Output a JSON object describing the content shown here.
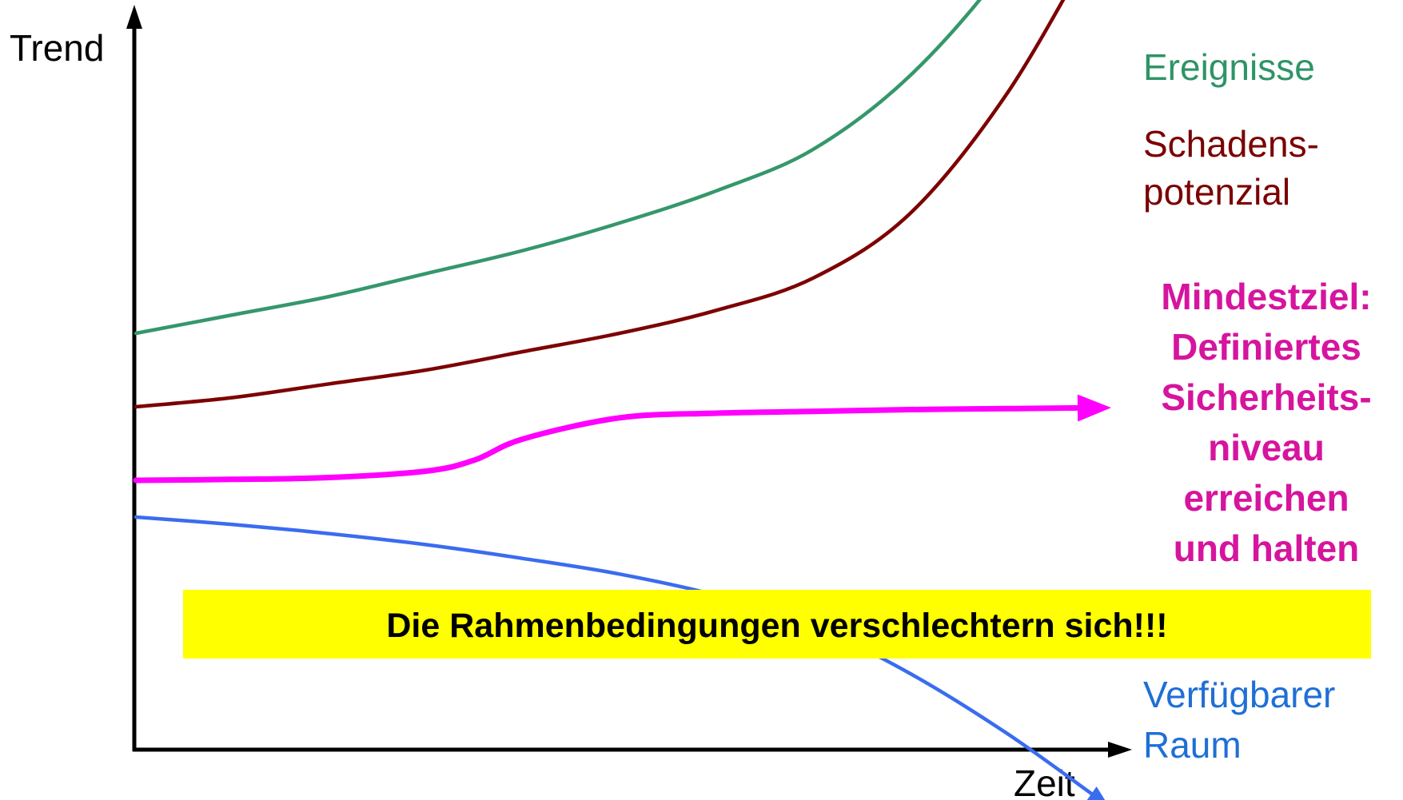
{
  "chart_data": {
    "type": "line",
    "ylabel": "Trend",
    "xlabel": "Zeit",
    "banner": {
      "text": "Die Rahmenbedingungen verschlechtern sich!!!",
      "color": "#ffff00"
    },
    "series": [
      {
        "name": "Ereignisse",
        "label_lines": [
          "Ereignisse"
        ],
        "color": "#2e9466",
        "stroke": "#35976b",
        "bold": false,
        "arrow": "small",
        "x": [
          0,
          10,
          20,
          30,
          40,
          50,
          60,
          70,
          80,
          90,
          100
        ],
        "y": [
          42,
          44,
          46,
          48.5,
          51,
          54,
          57.5,
          62,
          70,
          82,
          98
        ]
      },
      {
        "name": "Schadens- potenzial",
        "label_lines": [
          "Schadens-",
          "potenzial"
        ],
        "color": "#7a0000",
        "stroke": "#7d0000",
        "bold": false,
        "arrow": "small",
        "x": [
          0,
          10,
          20,
          30,
          40,
          50,
          60,
          70,
          80,
          90,
          100
        ],
        "y": [
          34,
          35,
          36.5,
          38,
          40,
          42,
          44.5,
          48,
          55,
          68,
          86
        ]
      },
      {
        "name": "Mindestziel: Definiertes Sicherheits- niveau erreichen und halten",
        "label_lines": [
          "Mindestziel:",
          "Definiertes",
          "Sicherheits-",
          "niveau",
          "erreichen",
          "und halten"
        ],
        "color": "#d6149e",
        "stroke": "#ff00ff",
        "bold": true,
        "arrow": "large",
        "x": [
          0,
          10,
          20,
          30,
          35,
          40,
          50,
          60,
          70,
          80,
          90,
          100
        ],
        "y": [
          26,
          26.1,
          26.3,
          27,
          28.2,
          30.5,
          32.8,
          33.3,
          33.5,
          33.7,
          33.8,
          33.9
        ]
      },
      {
        "name": "Verfügbarer Raum",
        "label_lines": [
          "Verfügbarer",
          "Raum"
        ],
        "color": "#1f6fd6",
        "stroke": "#3a6cf0",
        "bold": false,
        "arrow": "small",
        "x": [
          0,
          10,
          20,
          30,
          40,
          50,
          60,
          70,
          80,
          90,
          100
        ],
        "y": [
          22,
          21.2,
          20.2,
          19,
          17.5,
          15.8,
          13.5,
          10.2,
          5,
          -1.5,
          -9
        ]
      }
    ]
  }
}
